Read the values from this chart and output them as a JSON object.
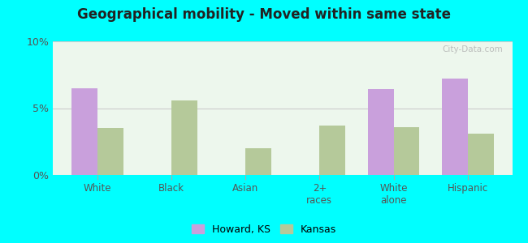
{
  "title": "Geographical mobility - Moved within same state",
  "categories": [
    "White",
    "Black",
    "Asian",
    "2+\nraces",
    "White\nalone",
    "Hispanic"
  ],
  "howard_ks": [
    6.5,
    0.0,
    0.0,
    0.0,
    6.4,
    7.2
  ],
  "kansas": [
    3.5,
    5.6,
    2.0,
    3.7,
    3.6,
    3.1
  ],
  "howard_color": "#c9a0dc",
  "kansas_color": "#b5c99a",
  "ylim": [
    0,
    10
  ],
  "yticks": [
    0,
    5,
    10
  ],
  "ytick_labels": [
    "0%",
    "5%",
    "10%"
  ],
  "plot_bg_top": "#f0fff0",
  "plot_bg_bottom": "#e8f5e8",
  "outer_background": "#00ffff",
  "bar_width": 0.35,
  "legend_howard": "Howard, KS",
  "legend_kansas": "Kansas",
  "watermark": "City-Data.com"
}
